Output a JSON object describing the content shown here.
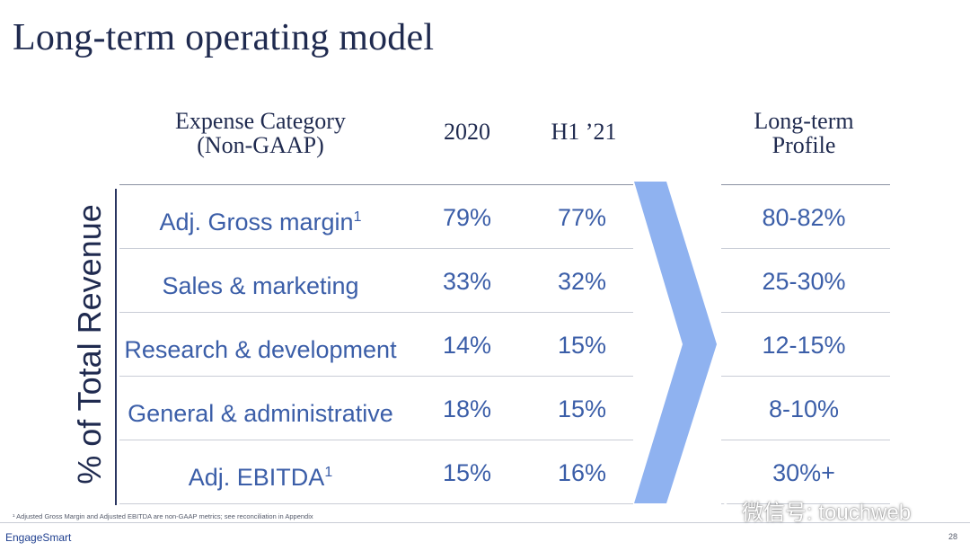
{
  "title": "Long-term operating model",
  "headers": {
    "category_line1": "Expense Category",
    "category_line2": "(Non-GAAP)",
    "col_2020": "2020",
    "col_h1": "H1 ’21",
    "longterm_line1": "Long-term",
    "longterm_line2": "Profile"
  },
  "axis_label": "% of Total Revenue",
  "rows": [
    {
      "category": "Adj. Gross margin",
      "sup": "1",
      "y2020": "79%",
      "h1": "77%",
      "longterm": "80-82%"
    },
    {
      "category": "Sales & marketing",
      "sup": "",
      "y2020": "33%",
      "h1": "32%",
      "longterm": "25-30%"
    },
    {
      "category": "Research & development",
      "sup": "",
      "y2020": "14%",
      "h1": "15%",
      "longterm": "12-15%"
    },
    {
      "category": "General & administrative",
      "sup": "",
      "y2020": "18%",
      "h1": "15%",
      "longterm": "8-10%"
    },
    {
      "category": "Adj. EBITDA",
      "sup": "1",
      "y2020": "15%",
      "h1": "16%",
      "longterm": "30%+"
    }
  ],
  "footnote": "¹ Adjusted Gross Margin and Adjusted EBITDA are non-GAAP metrics; see reconciliation in Appendix",
  "brand": "EngageSmart",
  "page_number": "28",
  "watermark": "微信号: touchweb",
  "colors": {
    "title": "#1f2a4f",
    "values": "#3b5ea8",
    "chevron": "#8fb2f0"
  }
}
